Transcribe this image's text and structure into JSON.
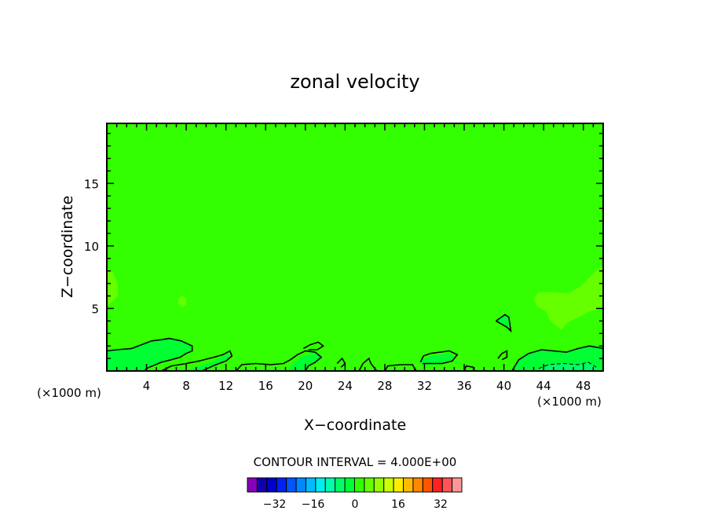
{
  "chart_data": {
    "type": "heatmap",
    "title": "zonal velocity",
    "xlabel": "X−coordinate",
    "ylabel": "Z−coordinate",
    "x_unit_left": "(×1000 m)",
    "x_unit_right": "(×1000 m)",
    "xlim": [
      0,
      50
    ],
    "ylim": [
      0,
      19.8
    ],
    "x_ticks": [
      4,
      8,
      12,
      16,
      20,
      24,
      28,
      32,
      36,
      40,
      44,
      48
    ],
    "x_tick_labels": [
      "4",
      "8",
      "12",
      "16",
      "20",
      "24",
      "28",
      "32",
      "36",
      "40",
      "44",
      "48"
    ],
    "y_ticks": [
      5,
      10,
      15
    ],
    "y_tick_labels": [
      "5",
      "10",
      "15"
    ],
    "background_color": "#33ff00",
    "contour_interval_label": "CONTOUR INTERVAL = 4.000E+00",
    "regions": [
      {
        "level": 4,
        "color": "#66ff00",
        "points": [
          [
            0,
            8.2
          ],
          [
            0.6,
            7.9
          ],
          [
            1.1,
            7.0
          ],
          [
            1.1,
            6.0
          ],
          [
            0.5,
            5.5
          ],
          [
            0,
            5.2
          ]
        ]
      },
      {
        "level": 4,
        "color": "#66ff00",
        "points": [
          [
            7.2,
            5.8
          ],
          [
            7.6,
            6.0
          ],
          [
            8.0,
            5.8
          ],
          [
            8.0,
            5.3
          ],
          [
            7.6,
            5.1
          ],
          [
            7.2,
            5.4
          ]
        ]
      },
      {
        "level": 4,
        "color": "#66ff00",
        "points": [
          [
            50,
            8.5
          ],
          [
            49,
            7.8
          ],
          [
            47.8,
            6.8
          ],
          [
            46.5,
            6.2
          ],
          [
            45,
            6.3
          ],
          [
            43.5,
            6.3
          ],
          [
            43,
            5.8
          ],
          [
            43.3,
            5.2
          ],
          [
            44.2,
            4.8
          ],
          [
            44.6,
            4.1
          ],
          [
            45.3,
            3.6
          ],
          [
            45.8,
            3.3
          ],
          [
            46.3,
            3.8
          ],
          [
            47.5,
            4.3
          ],
          [
            48.7,
            4.8
          ],
          [
            50,
            5.0
          ]
        ]
      },
      {
        "level": -4,
        "color": "#00ff33",
        "points": [
          [
            39.2,
            4.0
          ],
          [
            40.3,
            3.5
          ],
          [
            40.7,
            3.2
          ],
          [
            40.5,
            4.3
          ],
          [
            40.1,
            4.5
          ]
        ]
      },
      {
        "level": -4,
        "color": "#00ff33",
        "points": [
          [
            0,
            0
          ],
          [
            0,
            1.6
          ],
          [
            1.0,
            1.7
          ],
          [
            2.5,
            1.8
          ],
          [
            3.5,
            2.1
          ],
          [
            4.5,
            2.4
          ],
          [
            5.5,
            2.5
          ],
          [
            6.3,
            2.6
          ],
          [
            7.5,
            2.4
          ],
          [
            8.6,
            2.0
          ],
          [
            8.6,
            1.6
          ],
          [
            8.0,
            1.4
          ],
          [
            7.4,
            1.1
          ],
          [
            6.5,
            0.9
          ],
          [
            5.5,
            0.7
          ],
          [
            4.0,
            0.2
          ],
          [
            4.0,
            0
          ]
        ]
      },
      {
        "level": -4,
        "color": "#00ff33",
        "points": [
          [
            8.0,
            0
          ],
          [
            9.3,
            0.4
          ],
          [
            10.8,
            0.8
          ],
          [
            11.7,
            1.2
          ],
          [
            12.3,
            1.4
          ],
          [
            12.4,
            1.0
          ],
          [
            11.4,
            0.6
          ],
          [
            10.4,
            0.2
          ],
          [
            9.6,
            0
          ]
        ]
      },
      {
        "level": -4,
        "color": "#00ff33",
        "points": [
          [
            18.2,
            0
          ],
          [
            18.7,
            0.6
          ],
          [
            19.6,
            1.1
          ],
          [
            20.5,
            1.4
          ],
          [
            21.5,
            1.4
          ],
          [
            21.7,
            1.0
          ],
          [
            20.8,
            0.6
          ],
          [
            19.9,
            0
          ]
        ]
      },
      {
        "level": -4,
        "color": "#00ff33",
        "points": [
          [
            31.6,
            0.8
          ],
          [
            32.6,
            1.2
          ],
          [
            33.6,
            1.3
          ],
          [
            34.5,
            1.4
          ],
          [
            35.1,
            1.1
          ],
          [
            34.3,
            0.6
          ],
          [
            33.0,
            0.5
          ],
          [
            31.8,
            0.5
          ]
        ]
      },
      {
        "level": -4,
        "color": "#00ff33",
        "points": [
          [
            40.8,
            0
          ],
          [
            41.5,
            0.9
          ],
          [
            42.5,
            1.4
          ],
          [
            43.8,
            1.7
          ],
          [
            45.0,
            1.6
          ],
          [
            46.3,
            1.5
          ],
          [
            47.5,
            1.8
          ],
          [
            48.6,
            2.0
          ],
          [
            50,
            1.8
          ],
          [
            50,
            0
          ]
        ]
      },
      {
        "level": 0,
        "color": "#33ff00",
        "points": [
          [
            6.0,
            0
          ],
          [
            6.5,
            0.4
          ],
          [
            7.3,
            0.5
          ],
          [
            7.8,
            0.4
          ],
          [
            8.0,
            0
          ]
        ]
      },
      {
        "level": 0,
        "color": "#33ff00",
        "points": [
          [
            25.8,
            0
          ],
          [
            26.5,
            0.3
          ],
          [
            27.0,
            0.1
          ],
          [
            27.0,
            0
          ]
        ]
      },
      {
        "level": 0,
        "color": "#33ff00",
        "points": [
          [
            32.6,
            0
          ],
          [
            33.5,
            0.3
          ],
          [
            34.5,
            0.2
          ],
          [
            34.8,
            0
          ]
        ]
      },
      {
        "level": -8,
        "color": "#00ff66",
        "points": [
          [
            43.5,
            0
          ],
          [
            44.5,
            0.5
          ],
          [
            46.0,
            0.6
          ],
          [
            47.5,
            0.5
          ],
          [
            48.5,
            0.7
          ],
          [
            49.3,
            0.3
          ],
          [
            49.5,
            0
          ]
        ]
      }
    ],
    "contour_lines": [
      {
        "points": [
          [
            0,
            1.6
          ],
          [
            1.0,
            1.7
          ],
          [
            2.5,
            1.8
          ],
          [
            3.5,
            2.1
          ],
          [
            4.5,
            2.4
          ],
          [
            5.5,
            2.5
          ],
          [
            6.3,
            2.6
          ],
          [
            7.5,
            2.4
          ],
          [
            8.6,
            2.0
          ],
          [
            8.6,
            1.6
          ],
          [
            8.0,
            1.4
          ],
          [
            7.4,
            1.1
          ],
          [
            6.5,
            0.9
          ],
          [
            5.5,
            0.7
          ],
          [
            4.0,
            0.2
          ],
          [
            3.8,
            0
          ]
        ]
      },
      {
        "points": [
          [
            5.5,
            0
          ],
          [
            6.5,
            0.4
          ],
          [
            7.3,
            0.5
          ],
          [
            8.0,
            0.6
          ],
          [
            9.3,
            0.8
          ],
          [
            10.8,
            1.1
          ],
          [
            11.7,
            1.3
          ],
          [
            12.4,
            1.6
          ],
          [
            12.6,
            1.2
          ],
          [
            12.0,
            0.8
          ],
          [
            11.0,
            0.5
          ],
          [
            10.4,
            0.3
          ],
          [
            9.6,
            0
          ]
        ]
      },
      {
        "points": [
          [
            13.0,
            0
          ],
          [
            13.6,
            0.5
          ],
          [
            15.0,
            0.6
          ],
          [
            16.5,
            0.5
          ],
          [
            17.8,
            0.6
          ],
          [
            18.5,
            0.9
          ],
          [
            19.2,
            1.3
          ],
          [
            20.0,
            1.6
          ],
          [
            21.0,
            1.5
          ],
          [
            21.6,
            1.1
          ],
          [
            21.0,
            0.7
          ],
          [
            20.3,
            0.4
          ],
          [
            20.0,
            0
          ]
        ]
      },
      {
        "points": [
          [
            19.8,
            1.8
          ],
          [
            20.5,
            2.1
          ],
          [
            21.3,
            2.3
          ],
          [
            21.8,
            2.0
          ],
          [
            21.2,
            1.7
          ],
          [
            20.3,
            1.7
          ]
        ]
      },
      {
        "points": [
          [
            23.2,
            0.6
          ],
          [
            23.7,
            1.0
          ],
          [
            24.0,
            0.6
          ],
          [
            23.6,
            0.3
          ]
        ]
      },
      {
        "points": [
          [
            25.4,
            0
          ],
          [
            25.8,
            0.6
          ],
          [
            26.4,
            1.0
          ],
          [
            26.6,
            0.6
          ],
          [
            26.9,
            0.3
          ],
          [
            27.2,
            0
          ]
        ]
      },
      {
        "points": [
          [
            28.0,
            0
          ],
          [
            28.3,
            0.4
          ],
          [
            29.6,
            0.5
          ],
          [
            30.8,
            0.5
          ],
          [
            31.0,
            0.2
          ],
          [
            31.2,
            0
          ]
        ]
      },
      {
        "points": [
          [
            31.6,
            0.7
          ],
          [
            31.9,
            1.2
          ],
          [
            32.6,
            1.4
          ],
          [
            33.6,
            1.5
          ],
          [
            34.5,
            1.6
          ],
          [
            35.3,
            1.3
          ],
          [
            34.8,
            0.8
          ],
          [
            33.8,
            0.6
          ],
          [
            32.6,
            0.6
          ],
          [
            31.8,
            0.6
          ]
        ]
      },
      {
        "points": [
          [
            36.0,
            0
          ],
          [
            36.2,
            0.4
          ],
          [
            36.9,
            0.3
          ],
          [
            37.0,
            0
          ]
        ]
      },
      {
        "points": [
          [
            39.4,
            1.0
          ],
          [
            39.8,
            1.4
          ],
          [
            40.3,
            1.6
          ],
          [
            40.3,
            1.1
          ],
          [
            39.8,
            0.9
          ]
        ]
      },
      {
        "points": [
          [
            39.2,
            4.0
          ],
          [
            40.3,
            3.5
          ],
          [
            40.7,
            3.2
          ],
          [
            40.5,
            4.3
          ],
          [
            40.1,
            4.5
          ],
          [
            39.2,
            4.0
          ]
        ]
      },
      {
        "points": [
          [
            40.8,
            0
          ],
          [
            41.5,
            0.9
          ],
          [
            42.5,
            1.4
          ],
          [
            43.8,
            1.7
          ],
          [
            45.0,
            1.6
          ],
          [
            46.3,
            1.5
          ],
          [
            47.5,
            1.8
          ],
          [
            48.6,
            2.0
          ],
          [
            50,
            1.8
          ]
        ]
      }
    ],
    "dashed_lines": [
      {
        "points": [
          [
            43.5,
            0.2
          ],
          [
            44.5,
            0.5
          ],
          [
            46.0,
            0.6
          ],
          [
            47.5,
            0.5
          ],
          [
            48.5,
            0.7
          ],
          [
            49.3,
            0.3
          ]
        ]
      }
    ],
    "colorbar": {
      "colors": [
        "#8800bb",
        "#1100aa",
        "#0000cc",
        "#0022ee",
        "#0055ff",
        "#0088ff",
        "#00bbff",
        "#00eeee",
        "#00ffaa",
        "#00ff66",
        "#00ff33",
        "#33ff00",
        "#66ff00",
        "#99ff00",
        "#ccff00",
        "#ffee00",
        "#ffbb00",
        "#ff8800",
        "#ff5500",
        "#ff2222",
        "#ff5555",
        "#ff9999"
      ],
      "tick_labels": [
        "−32",
        "−16",
        "0",
        "16",
        "32"
      ]
    }
  }
}
